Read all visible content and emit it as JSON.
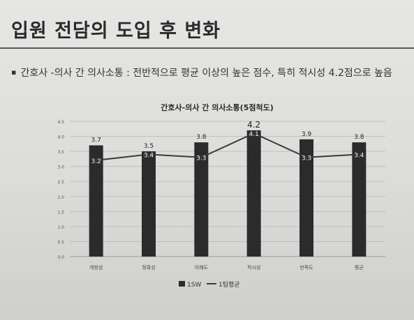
{
  "slide": {
    "title": "입원 전담의 도입 후 변화",
    "bullet_marker": "▪",
    "bullet_text": "간호사 -의사 간 의사소통 : 전반적으로 평균 이상의 높은 점수, 특히 적시성 4.2점으로 높음"
  },
  "chart_data": {
    "type": "bar",
    "title": "간호사-의사 간 의사소통(5점척도)",
    "categories": [
      "개방성",
      "정확성",
      "이해도",
      "적시성",
      "만족도",
      "평균"
    ],
    "ylim": [
      0,
      4.5
    ],
    "yticks": [
      "0.0",
      "0.5",
      "1.0",
      "1.5",
      "2.0",
      "2.5",
      "3.0",
      "3.5",
      "4.0",
      "4.5"
    ],
    "grid": true,
    "legend": "bottom",
    "series": [
      {
        "name": "1SW",
        "kind": "bar",
        "values": [
          3.7,
          3.5,
          3.8,
          4.2,
          3.9,
          3.8
        ],
        "color": "#2b2b2b"
      },
      {
        "name": "1팀평균",
        "kind": "line",
        "values": [
          3.2,
          3.4,
          3.3,
          4.1,
          3.3,
          3.4
        ],
        "color": "#3a3a3a"
      }
    ]
  }
}
